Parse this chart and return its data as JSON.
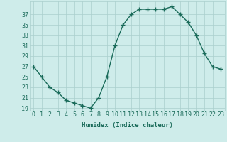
{
  "x": [
    0,
    1,
    2,
    3,
    4,
    5,
    6,
    7,
    8,
    9,
    10,
    11,
    12,
    13,
    14,
    15,
    16,
    17,
    18,
    19,
    20,
    21,
    22,
    23
  ],
  "y": [
    27,
    25,
    23,
    22,
    20.5,
    20,
    19.5,
    19,
    21,
    25,
    31,
    35,
    37,
    38,
    38,
    38,
    38,
    38.5,
    37,
    35.5,
    33,
    29.5,
    27,
    26.5
  ],
  "line_color": "#1a6b5a",
  "marker": "+",
  "marker_size": 4,
  "linewidth": 1.0,
  "xlabel": "Humidex (Indice chaleur)",
  "xlim": [
    -0.5,
    23.5
  ],
  "ylim": [
    18.5,
    39.5
  ],
  "yticks": [
    19,
    21,
    23,
    25,
    27,
    29,
    31,
    33,
    35,
    37
  ],
  "xtick_labels": [
    "0",
    "1",
    "2",
    "3",
    "4",
    "5",
    "6",
    "7",
    "8",
    "9",
    "10",
    "11",
    "12",
    "13",
    "14",
    "15",
    "16",
    "17",
    "18",
    "19",
    "20",
    "21",
    "22",
    "23"
  ],
  "bg_color": "#ceecea",
  "grid_color": "#aacfcd",
  "label_color": "#1a6b5a",
  "xlabel_fontsize": 6.5,
  "tick_fontsize": 6.0
}
